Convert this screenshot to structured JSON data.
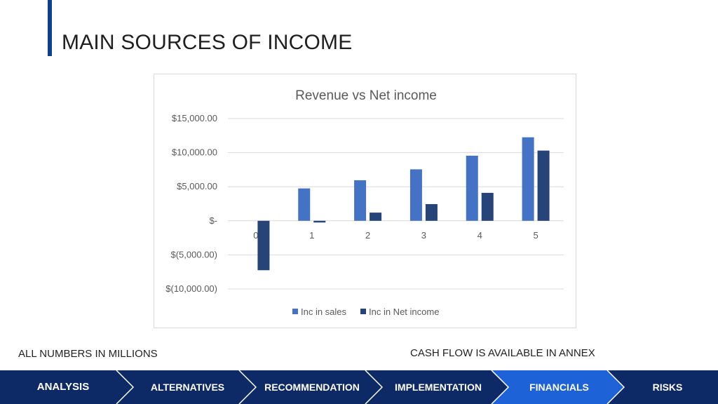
{
  "header": {
    "title": "MAIN SOURCES OF INCOME"
  },
  "chart_data": {
    "type": "bar",
    "title": "Revenue vs Net income",
    "categories": [
      "0",
      "1",
      "2",
      "3",
      "4",
      "5"
    ],
    "series": [
      {
        "name": "Inc in sales",
        "color": "#4472c4",
        "values": [
          0,
          4750,
          5950,
          7550,
          9550,
          12250
        ]
      },
      {
        "name": "Inc in Net income",
        "color": "#264478",
        "values": [
          -7250,
          -250,
          1200,
          2450,
          4100,
          10300
        ]
      }
    ],
    "ylim": [
      -10000,
      15000
    ],
    "yticks": [
      15000,
      10000,
      5000,
      0,
      -5000,
      -10000
    ],
    "ytick_labels": [
      "$15,000.00",
      "$10,000.00",
      "$5,000.00",
      "$-",
      "$(5,000.00)",
      "$(10,000.00)"
    ],
    "grid": true,
    "legend_position": "bottom"
  },
  "notes": {
    "left": "ALL NUMBERS IN MILLIONS",
    "right": "CASH FLOW IS AVAILABLE IN ANNEX"
  },
  "nav": {
    "items": [
      {
        "label": "ANALYSIS",
        "active": false
      },
      {
        "label": "ALTERNATIVES",
        "active": false
      },
      {
        "label": "RECOMMENDATION",
        "active": false
      },
      {
        "label": "IMPLEMENTATION",
        "active": false
      },
      {
        "label": "FINANCIALS",
        "active": true
      },
      {
        "label": "RISKS",
        "active": false
      }
    ],
    "colors": {
      "base": "#0e2a66",
      "active": "#1d62d6"
    }
  }
}
